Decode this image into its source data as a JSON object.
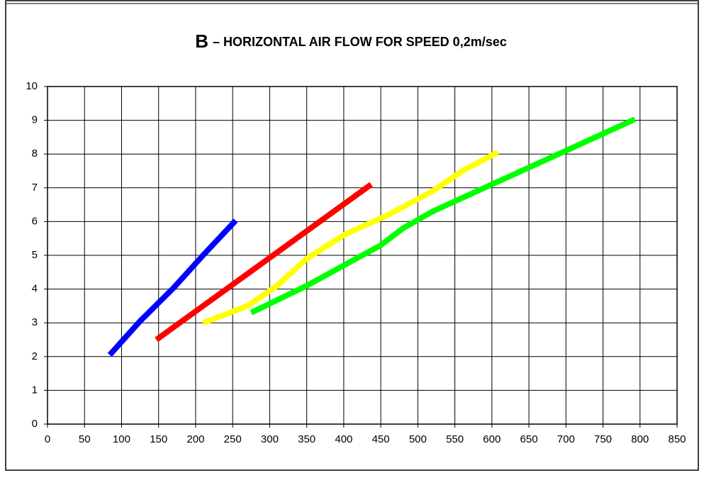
{
  "chart_data": {
    "type": "line",
    "title_parts": [
      "B",
      "– HORIZONTAL AIR FLOW FOR SPEED 0,2m/sec"
    ],
    "series": [
      {
        "color": "#0000ff",
        "x": [
          84,
          125,
          170,
          210,
          254
        ],
        "values": [
          2.05,
          3.05,
          4.03,
          5.0,
          6.03
        ]
      },
      {
        "color": "#ff0000",
        "x": [
          147,
          437
        ],
        "values": [
          2.5,
          7.1
        ]
      },
      {
        "color": "#ffff00",
        "x": [
          210,
          270,
          310,
          350,
          400,
          460,
          520,
          560,
          608
        ],
        "values": [
          3.0,
          3.5,
          4.1,
          4.9,
          5.6,
          6.2,
          6.9,
          7.5,
          8.05
        ]
      },
      {
        "color": "#00ff00",
        "x": [
          275,
          350,
          400,
          450,
          480,
          520,
          600,
          700,
          793
        ],
        "values": [
          3.3,
          4.1,
          4.7,
          5.3,
          5.8,
          6.3,
          7.1,
          8.1,
          9.03
        ]
      }
    ],
    "xlim": [
      0,
      850
    ],
    "xticks": [
      0,
      50,
      100,
      150,
      200,
      250,
      300,
      350,
      400,
      450,
      500,
      550,
      600,
      650,
      700,
      750,
      800,
      850
    ],
    "ylim": [
      0,
      10
    ],
    "yticks": [
      0,
      1,
      2,
      3,
      4,
      5,
      6,
      7,
      8,
      9,
      10
    ],
    "grid": true
  }
}
